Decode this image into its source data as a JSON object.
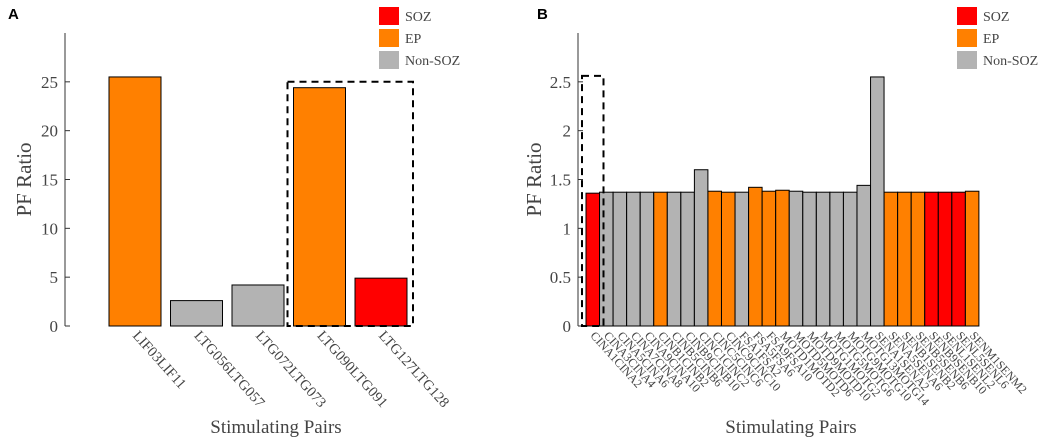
{
  "chart_data": [
    {
      "panel": "A",
      "type": "bar",
      "xlabel": "Stimulating Pairs",
      "ylabel": "PF Ratio",
      "ylim": [
        0,
        30
      ],
      "yticks": [
        0,
        5,
        10,
        15,
        20,
        25
      ],
      "categories": [
        "LIF03LIF11",
        "LTG056LTG057",
        "LTG072LTG073",
        "LTG090LTG091",
        "LTG127LTG128"
      ],
      "values": [
        25.5,
        2.6,
        4.2,
        24.4,
        4.9
      ],
      "classes": [
        "EP",
        "Non-SOZ",
        "Non-SOZ",
        "EP",
        "SOZ"
      ],
      "highlight_box": {
        "from_index": 3,
        "to_index": 4,
        "style": "dashed"
      },
      "legend": {
        "position": "top-right",
        "entries": [
          {
            "label": "SOZ",
            "color": "#ff0000"
          },
          {
            "label": "EP",
            "color": "#ff8000"
          },
          {
            "label": "Non-SOZ",
            "color": "#b3b3b3"
          }
        ]
      }
    },
    {
      "panel": "B",
      "type": "bar",
      "xlabel": "Stimulating Pairs",
      "ylabel": "PF Ratio",
      "ylim": [
        0,
        3
      ],
      "yticks": [
        0,
        0.5,
        1,
        1.5,
        2,
        2.5
      ],
      "categories": [
        "CINA1CINA2",
        "CINA3CINA4",
        "CINA5CINA6",
        "CINA7CINA8",
        "CINA9CINA10",
        "CINB1CINB2",
        "CINB5CINB6",
        "CINB9CINB10",
        "CINC1CINC2",
        "CINC5CINC6",
        "CINC9CINC10",
        "FSA1FSA2",
        "FSA5FSA6",
        "FSA9FSA10",
        "MOTD1MOTD2",
        "MOTD5MOTD6",
        "MOTD9MOTD10",
        "MOTG1MOTG2",
        "MOTG5MOTG6",
        "MOTG9MOTG10",
        "MOTG13MOTG14",
        "SENA1SENA2",
        "SENA5SENA6",
        "SENB1SENB2",
        "SENB5SENB6",
        "SENB9SENB10",
        "SENL1SENL2",
        "SENL5SENL6",
        "SENM1SENM2"
      ],
      "values": [
        1.36,
        1.37,
        1.37,
        1.37,
        1.37,
        1.37,
        1.37,
        1.37,
        1.6,
        1.38,
        1.37,
        1.37,
        1.42,
        1.38,
        1.39,
        1.38,
        1.37,
        1.37,
        1.37,
        1.37,
        1.44,
        2.55,
        1.37,
        1.37,
        1.37,
        1.37,
        1.37,
        1.37,
        1.38
      ],
      "classes": [
        "SOZ",
        "Non-SOZ",
        "Non-SOZ",
        "Non-SOZ",
        "Non-SOZ",
        "EP",
        "Non-SOZ",
        "Non-SOZ",
        "Non-SOZ",
        "EP",
        "EP",
        "Non-SOZ",
        "EP",
        "EP",
        "EP",
        "Non-SOZ",
        "Non-SOZ",
        "Non-SOZ",
        "Non-SOZ",
        "Non-SOZ",
        "Non-SOZ",
        "Non-SOZ",
        "EP",
        "EP",
        "EP",
        "SOZ",
        "SOZ",
        "SOZ",
        "EP"
      ],
      "highlight_box": {
        "from_index": 0,
        "to_index": 0,
        "style": "dashed",
        "top_value": 2.5
      },
      "legend": {
        "position": "top-right",
        "entries": [
          {
            "label": "SOZ",
            "color": "#ff0000"
          },
          {
            "label": "EP",
            "color": "#ff8000"
          },
          {
            "label": "Non-SOZ",
            "color": "#b3b3b3"
          }
        ]
      }
    }
  ],
  "class_colors": {
    "SOZ": "#ff0000",
    "EP": "#ff8000",
    "Non-SOZ": "#b3b3b3"
  }
}
